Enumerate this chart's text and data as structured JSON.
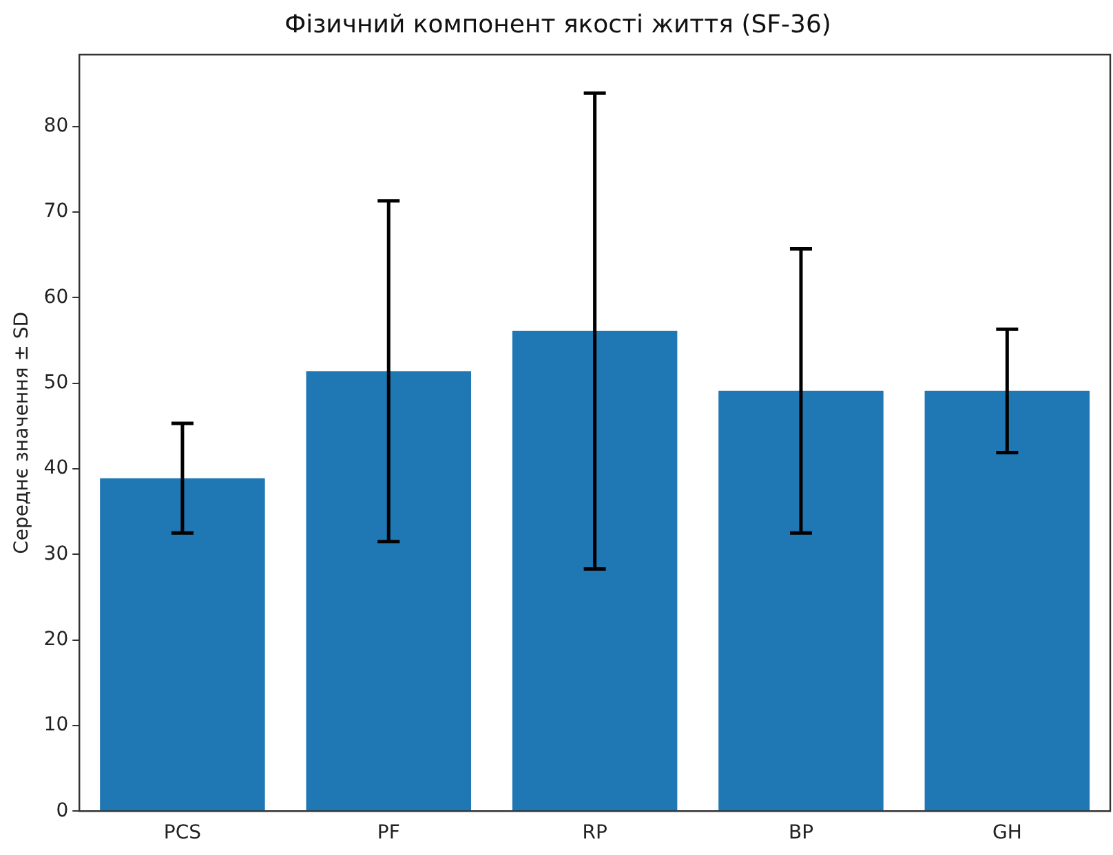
{
  "chart_data": {
    "type": "bar",
    "title": "Фізичний компонент якості життя (SF-36)",
    "ylabel": "Середнє значення ± SD",
    "categories": [
      "PCS",
      "PF",
      "RP",
      "BP",
      "GH"
    ],
    "values": [
      38.9,
      51.4,
      56.1,
      49.1,
      49.1
    ],
    "errors": [
      6.4,
      19.9,
      27.8,
      16.6,
      7.2
    ],
    "color": "#1f77b4",
    "ylim": [
      0,
      88.4
    ],
    "yticks": [
      0,
      10,
      20,
      30,
      40,
      50,
      60,
      70,
      80
    ],
    "grid": false
  }
}
